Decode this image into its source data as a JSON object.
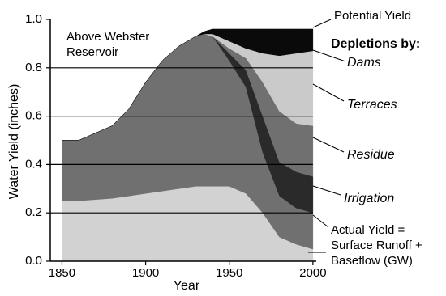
{
  "chart_data": {
    "type": "stacked_area",
    "title": "Above Webster Reservoir",
    "xlabel": "Year",
    "ylabel": "Water Yield (inches)",
    "annotations": [
      "Potential Yield",
      "Depletions by:"
    ],
    "x": [
      1850,
      1860,
      1880,
      1890,
      1900,
      1910,
      1920,
      1930,
      1935,
      1940,
      1950,
      1960,
      1970,
      1980,
      1990,
      2000
    ],
    "series": [
      {
        "name": "Actual Yield = Surface Runoff + Baseflow (GW)",
        "color": "#d2d2d2",
        "values": [
          0.25,
          0.25,
          0.26,
          0.27,
          0.28,
          0.29,
          0.3,
          0.31,
          0.31,
          0.31,
          0.31,
          0.28,
          0.2,
          0.1,
          0.07,
          0.05
        ]
      },
      {
        "color": "#707070",
        "values": [
          0.25,
          0.25,
          0.3,
          0.36,
          0.46,
          0.54,
          0.59,
          0.62,
          0.63,
          0.62,
          0.52,
          0.44,
          0.25,
          0.17,
          0.15,
          0.15
        ]
      },
      {
        "name": "Irrigation",
        "color": "#2a2a2a",
        "values": [
          0,
          0,
          0,
          0,
          0,
          0,
          0,
          0,
          0,
          0,
          0.03,
          0.07,
          0.15,
          0.14,
          0.15,
          0.15
        ]
      },
      {
        "name": "Residue",
        "color": "#707070",
        "values": [
          0,
          0,
          0,
          0,
          0,
          0,
          0,
          0,
          0,
          0,
          0.02,
          0.05,
          0.14,
          0.21,
          0.2,
          0.21
        ]
      },
      {
        "name": "Terraces",
        "color": "#cacaca",
        "values": [
          0,
          0,
          0,
          0,
          0,
          0,
          0,
          0,
          0,
          0.01,
          0.03,
          0.04,
          0.12,
          0.23,
          0.29,
          0.31
        ]
      },
      {
        "name": "Dams",
        "color": "#0a0a0a",
        "values": [
          0,
          0,
          0,
          0,
          0,
          0,
          0,
          0,
          0.01,
          0.02,
          0.05,
          0.08,
          0.1,
          0.11,
          0.1,
          0.09
        ]
      }
    ],
    "xlim": [
      1843,
      2002
    ],
    "xticks": [
      1850,
      1900,
      1950,
      2000
    ],
    "ylim": [
      0,
      1
    ],
    "yticks": [
      {
        "value": 0,
        "label": "0.0"
      },
      {
        "value": 0.2,
        "label": "0.2"
      },
      {
        "value": 0.4,
        "label": "0.4"
      },
      {
        "value": 0.6,
        "label": "0.6"
      },
      {
        "value": 0.8,
        "label": "0.8"
      },
      {
        "value": 1,
        "label": "1.0"
      }
    ],
    "grid": true
  }
}
